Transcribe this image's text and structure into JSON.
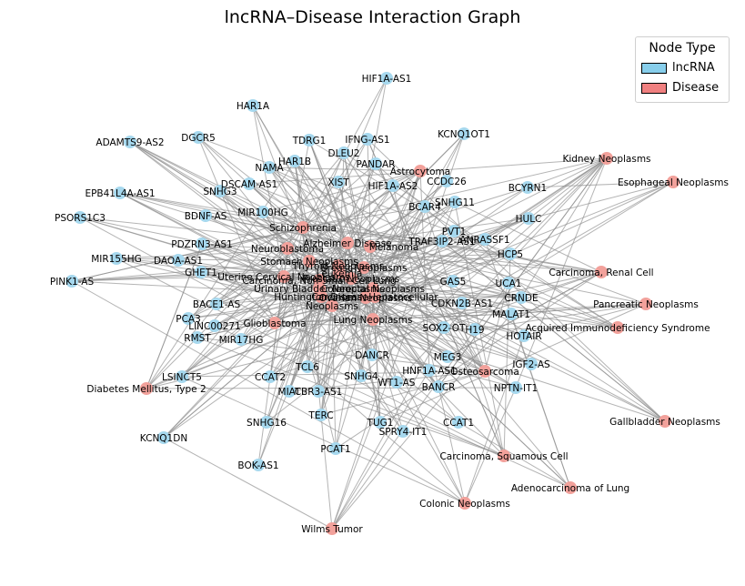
{
  "title": "lncRNA–Disease Interaction Graph",
  "legend": {
    "title": "Node Type",
    "items": [
      {
        "label": "lncRNA",
        "color": "#87ceeb"
      },
      {
        "label": "Disease",
        "color": "#f08080"
      }
    ]
  },
  "colors": {
    "lncrna": "#a6d8ee",
    "disease": "#f2a19b",
    "edge": "#8c8c8c"
  },
  "lncrnas": [
    "HIF1A-AS1",
    "HAR1A",
    "KCNQ1OT1",
    "ADAMTS9-AS2",
    "DGCR5",
    "TDRG1",
    "IFNG-AS1",
    "DLEU2",
    "HAR1B",
    "PANDAR",
    "NAMA",
    "XIST",
    "CCDC26",
    "DSCAM-AS1",
    "SNHG3",
    "HIF1A-AS2",
    "BCYRN1",
    "EPB41L4A-AS1",
    "BCAR4",
    "SNHG11",
    "MIR100HG",
    "BDNF-AS",
    "PSORS1C3",
    "HULC",
    "PVT1",
    "TRAF3IP2-AS1",
    "PDZRN3-AS1",
    "MIR155HG",
    "DAOA-AS1",
    "ANRASSF1",
    "HCP5",
    "GHET1",
    "PINK1-AS",
    "GAS5",
    "UCA1",
    "BACE1-AS",
    "CDKN2B-AS1",
    "CRNDE",
    "MALAT1",
    "PCA3",
    "LINC00271",
    "SOX2-OT",
    "H19",
    "RMST",
    "MIR17HG",
    "HOTAIR",
    "DANCR",
    "MEG3",
    "IGF2-AS",
    "HNF1A-AS1",
    "LSINCT5",
    "CCAT2",
    "TCL6",
    "SNHG4",
    "WT1-AS",
    "MIAT",
    "CBR3-AS1",
    "BANCR",
    "NPTN-IT1",
    "TERC",
    "SNHG16",
    "CCAT1",
    "TUG1",
    "SPRY4-IT1",
    "KCNQ1DN",
    "PCAT1",
    "BOK-AS1"
  ],
  "diseases": [
    "Astrocytoma",
    "Kidney Neoplasms",
    "Esophageal Neoplasms",
    "Schizophrenia",
    "Alzheimer Disease",
    "Melanoma",
    "Neuroblastoma",
    "Stomach Neoplasms",
    "Thyroid Neoplasms",
    "Breast Neoplasms",
    "Carcinoma, Renal Cell",
    "Uterine Cervical Neoplasms",
    "Leukemia",
    "Prostatic Neoplasms",
    "Carcinoma, Non-Small-Cell Lung",
    "Urinary Bladder Neoplasms",
    "Colorectal Neoplasms",
    "Pancreatic Neoplasms",
    "Huntington Disease",
    "Carcinoma, Hepatocellular",
    "Ovarian Neoplasms",
    "Neoplasms",
    "Lung Neoplasms",
    "Glioblastoma",
    "Acquired Immunodeficiency Syndrome",
    "Osteosarcoma",
    "Diabetes Mellitus, Type 2",
    "Gallbladder Neoplasms",
    "Carcinoma, Squamous Cell",
    "Adenocarcinoma of Lung",
    "Colonic Neoplasms",
    "Wilms Tumor"
  ]
}
